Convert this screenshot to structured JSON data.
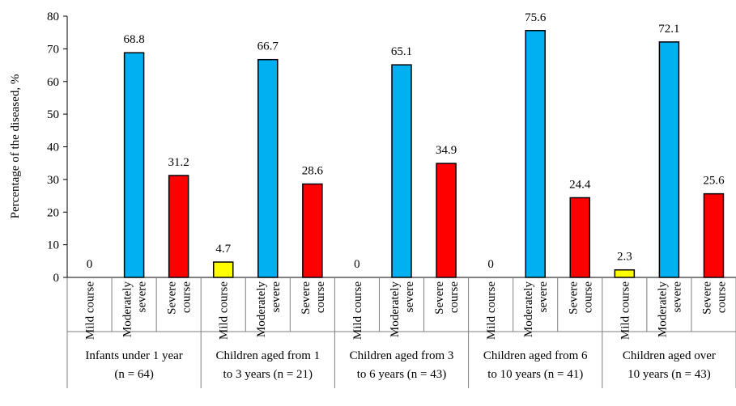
{
  "chart_data": {
    "type": "bar",
    "title": "",
    "ylabel": "Percentage of the diseased, %",
    "ylim": [
      0,
      80
    ],
    "yticks": [
      0,
      10,
      20,
      30,
      40,
      50,
      60,
      70,
      80
    ],
    "grid": false,
    "colors": {
      "mild": "#ffff00",
      "moderate": "#00b0f0",
      "severe": "#ff0000"
    },
    "groups": [
      {
        "label_lines": [
          "Infants under 1 year",
          "(n = 64)"
        ],
        "bars": [
          {
            "category_lines": [
              "Mild course"
            ],
            "value": 0,
            "value_label": "0",
            "kind": "mild"
          },
          {
            "category_lines": [
              "Moderately",
              "severe"
            ],
            "value": 68.8,
            "value_label": "68.8",
            "kind": "moderate"
          },
          {
            "category_lines": [
              "Severe",
              "course"
            ],
            "value": 31.2,
            "value_label": "31.2",
            "kind": "severe"
          }
        ]
      },
      {
        "label_lines": [
          "Children aged from 1",
          "to 3 years  (n = 21)"
        ],
        "bars": [
          {
            "category_lines": [
              "Mild course"
            ],
            "value": 4.7,
            "value_label": "4.7",
            "kind": "mild"
          },
          {
            "category_lines": [
              "Moderately",
              "severe"
            ],
            "value": 66.7,
            "value_label": "66.7",
            "kind": "moderate"
          },
          {
            "category_lines": [
              "Severe",
              "course"
            ],
            "value": 28.6,
            "value_label": "28.6",
            "kind": "severe"
          }
        ]
      },
      {
        "label_lines": [
          "Children aged from 3",
          "to 6 years  (n = 43)"
        ],
        "bars": [
          {
            "category_lines": [
              "Mild course"
            ],
            "value": 0,
            "value_label": "0",
            "kind": "mild"
          },
          {
            "category_lines": [
              "Moderately",
              "severe"
            ],
            "value": 65.1,
            "value_label": "65.1",
            "kind": "moderate"
          },
          {
            "category_lines": [
              "Severe",
              "course"
            ],
            "value": 34.9,
            "value_label": "34.9",
            "kind": "severe"
          }
        ]
      },
      {
        "label_lines": [
          "Children aged from 6",
          "to 10 years  (n = 41)"
        ],
        "bars": [
          {
            "category_lines": [
              "Mild course"
            ],
            "value": 0,
            "value_label": "0",
            "kind": "mild"
          },
          {
            "category_lines": [
              "Moderately",
              "severe"
            ],
            "value": 75.6,
            "value_label": "75.6",
            "kind": "moderate"
          },
          {
            "category_lines": [
              "Severe",
              "course"
            ],
            "value": 24.4,
            "value_label": "24.4",
            "kind": "severe"
          }
        ]
      },
      {
        "label_lines": [
          "Children aged over",
          "10 years  (n = 43)"
        ],
        "bars": [
          {
            "category_lines": [
              "Mild course"
            ],
            "value": 2.3,
            "value_label": "2.3",
            "kind": "mild"
          },
          {
            "category_lines": [
              "Moderately",
              "severe"
            ],
            "value": 72.1,
            "value_label": "72.1",
            "kind": "moderate"
          },
          {
            "category_lines": [
              "Severe",
              "course"
            ],
            "value": 25.6,
            "value_label": "25.6",
            "kind": "severe"
          }
        ]
      }
    ]
  }
}
